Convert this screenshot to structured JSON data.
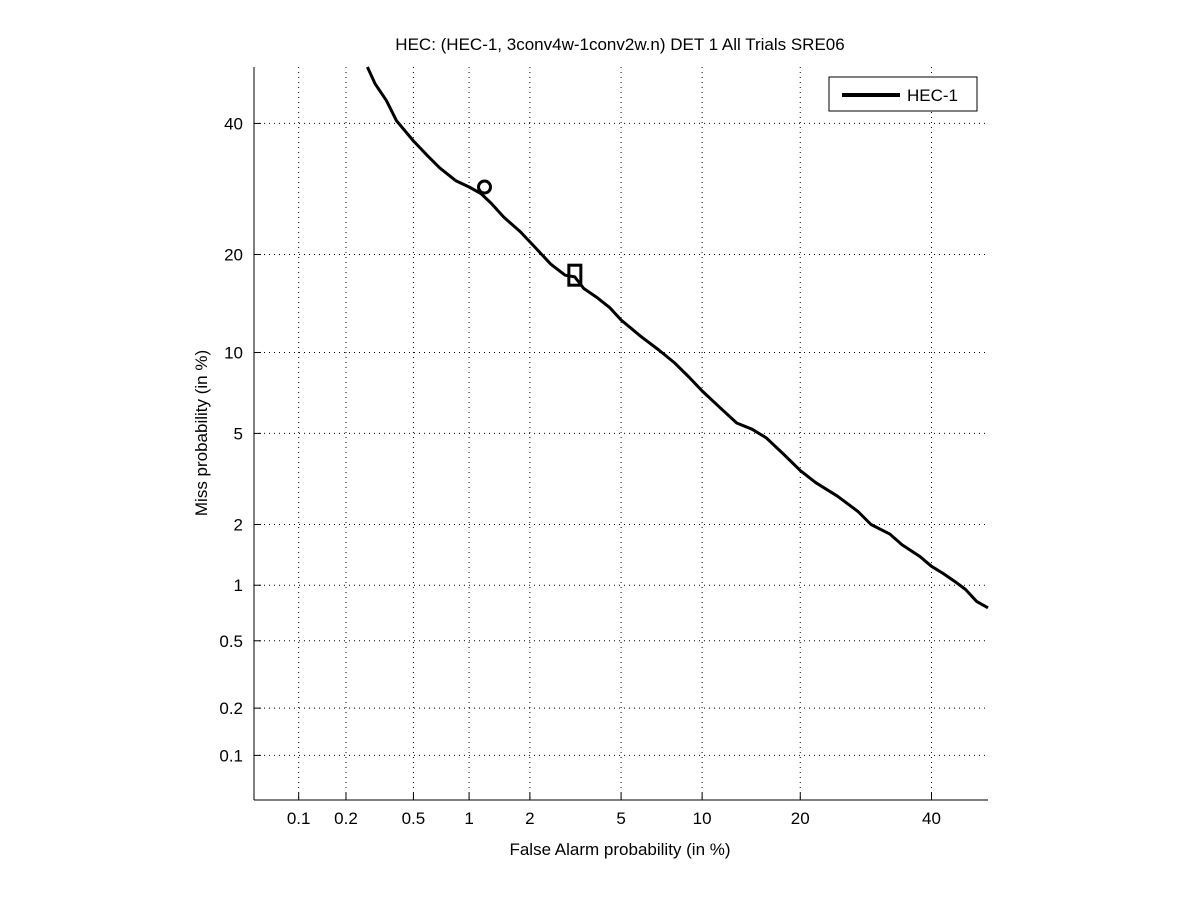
{
  "chart_data": {
    "type": "line",
    "title": "HEC: (HEC-1, 3conv4w-1conv2w.n) DET 1 All Trials SRE06",
    "xlabel": "False Alarm probability (in %)",
    "ylabel": "Miss probability (in %)",
    "xscale": "probit",
    "yscale": "probit",
    "xlim": [
      0.05,
      50
    ],
    "ylim": [
      0.05,
      50
    ],
    "grid": true,
    "legend_position": "top-right",
    "x_ticks": [
      {
        "value": 0.1,
        "label": "0.1"
      },
      {
        "value": 0.2,
        "label": "0.2"
      },
      {
        "value": 0.5,
        "label": "0.5"
      },
      {
        "value": 1,
        "label": "1"
      },
      {
        "value": 2,
        "label": "2"
      },
      {
        "value": 5,
        "label": "5"
      },
      {
        "value": 10,
        "label": "10"
      },
      {
        "value": 20,
        "label": "20"
      },
      {
        "value": 40,
        "label": "40"
      }
    ],
    "y_ticks": [
      {
        "value": 0.1,
        "label": "0.1"
      },
      {
        "value": 0.2,
        "label": "0.2"
      },
      {
        "value": 0.5,
        "label": "0.5"
      },
      {
        "value": 1,
        "label": "1"
      },
      {
        "value": 2,
        "label": "2"
      },
      {
        "value": 5,
        "label": "5"
      },
      {
        "value": 10,
        "label": "10"
      },
      {
        "value": 20,
        "label": "20"
      },
      {
        "value": 40,
        "label": "40"
      }
    ],
    "series": [
      {
        "name": "HEC-1",
        "color": "#000000",
        "x": [
          0.27,
          0.3,
          0.35,
          0.4,
          0.5,
          0.6,
          0.7,
          0.85,
          1.0,
          1.15,
          1.3,
          1.5,
          1.8,
          2.1,
          2.5,
          2.9,
          3.2,
          3.5,
          4.0,
          4.5,
          5.0,
          6.0,
          7.0,
          8.0,
          9.0,
          10.0,
          11.5,
          13.0,
          14.5,
          16.0,
          18.0,
          20.0,
          22.0,
          25.0,
          28.0,
          30.0,
          33.0,
          35.0,
          38.0,
          40.0,
          42.0,
          44.0,
          46.0,
          48.0,
          50.0
        ],
        "y": [
          50,
          47,
          44,
          40.5,
          37,
          34.5,
          32.5,
          30.5,
          29.5,
          28.5,
          27.0,
          25.0,
          23.0,
          21.0,
          18.8,
          17.5,
          17.3,
          16.0,
          15.0,
          14.0,
          12.8,
          11.3,
          10.2,
          9.2,
          8.2,
          7.3,
          6.3,
          5.5,
          5.2,
          4.8,
          4.1,
          3.5,
          3.1,
          2.7,
          2.3,
          2.0,
          1.8,
          1.6,
          1.4,
          1.25,
          1.15,
          1.05,
          0.95,
          0.82,
          0.76
        ]
      }
    ],
    "markers": [
      {
        "shape": "circle",
        "x": 1.2,
        "y": 29.5
      },
      {
        "shape": "square",
        "x": 3.2,
        "y": 17.5
      }
    ]
  }
}
